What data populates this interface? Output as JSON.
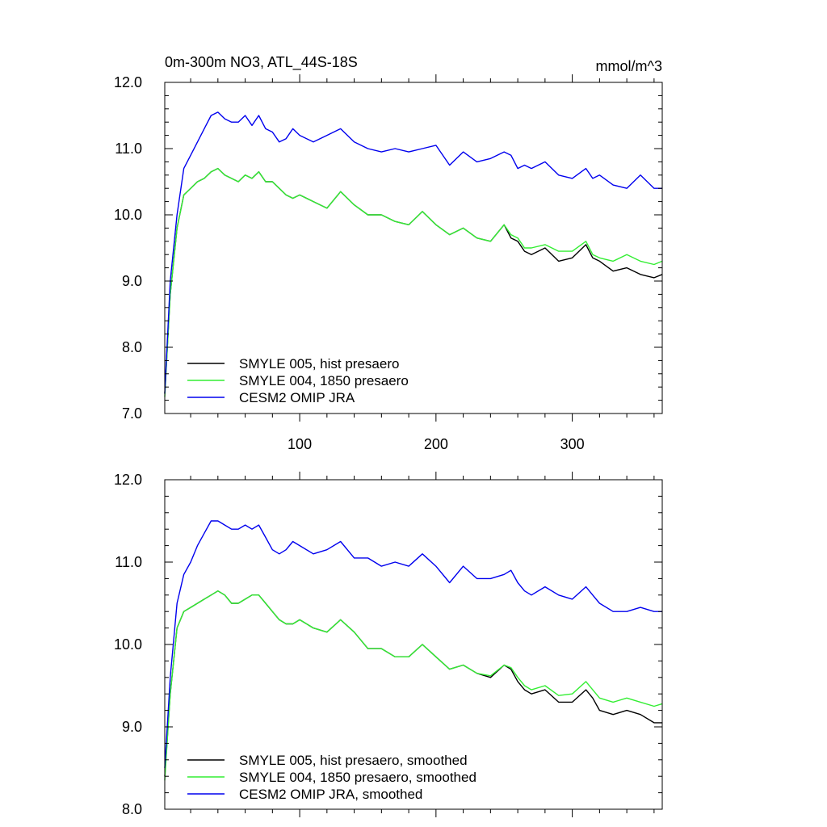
{
  "title": "0m-300m NO3, ATL_44S-18S",
  "units": "mmol/m^3",
  "chart_data": [
    {
      "type": "line",
      "name": "raw",
      "xlim": [
        1,
        366
      ],
      "ylim": [
        7.0,
        12.0
      ],
      "yticks": [
        7.0,
        8.0,
        9.0,
        10.0,
        11.0,
        12.0
      ],
      "ytick_labels": [
        "7.0",
        "8.0",
        "9.0",
        "10.0",
        "11.0",
        "12.0"
      ],
      "xticks": [
        100,
        200,
        300
      ],
      "xtick_labels": [
        "100",
        "200",
        "300"
      ],
      "legend_position": "bottom-left",
      "series": [
        {
          "name": "SMYLE 005, hist presaero",
          "color": "#000000",
          "x": [
            1,
            5,
            10,
            15,
            20,
            25,
            30,
            35,
            40,
            45,
            50,
            55,
            60,
            65,
            70,
            75,
            80,
            85,
            90,
            95,
            100,
            110,
            120,
            130,
            140,
            150,
            160,
            170,
            180,
            190,
            200,
            210,
            220,
            230,
            240,
            250,
            255,
            260,
            265,
            270,
            280,
            290,
            300,
            310,
            315,
            320,
            330,
            340,
            350,
            360,
            366
          ],
          "values": [
            7.3,
            8.8,
            9.8,
            10.3,
            10.4,
            10.5,
            10.55,
            10.65,
            10.7,
            10.6,
            10.55,
            10.5,
            10.6,
            10.55,
            10.65,
            10.5,
            10.5,
            10.4,
            10.3,
            10.25,
            10.3,
            10.2,
            10.1,
            10.35,
            10.15,
            10.0,
            10.0,
            9.9,
            9.85,
            10.05,
            9.85,
            9.7,
            9.8,
            9.65,
            9.6,
            9.85,
            9.65,
            9.6,
            9.45,
            9.4,
            9.5,
            9.3,
            9.35,
            9.55,
            9.35,
            9.3,
            9.15,
            9.2,
            9.1,
            9.05,
            9.1
          ]
        },
        {
          "name": "SMYLE 004, 1850 presaero",
          "color": "#33ee33",
          "x": [
            1,
            5,
            10,
            15,
            20,
            25,
            30,
            35,
            40,
            45,
            50,
            55,
            60,
            65,
            70,
            75,
            80,
            85,
            90,
            95,
            100,
            110,
            120,
            130,
            140,
            150,
            160,
            170,
            180,
            190,
            200,
            210,
            220,
            230,
            240,
            250,
            255,
            260,
            265,
            270,
            280,
            290,
            300,
            310,
            315,
            320,
            330,
            340,
            350,
            360,
            366
          ],
          "values": [
            7.25,
            8.8,
            9.8,
            10.3,
            10.4,
            10.5,
            10.55,
            10.65,
            10.7,
            10.6,
            10.55,
            10.5,
            10.6,
            10.55,
            10.65,
            10.5,
            10.5,
            10.4,
            10.3,
            10.25,
            10.3,
            10.2,
            10.1,
            10.35,
            10.15,
            10.0,
            10.0,
            9.9,
            9.85,
            10.05,
            9.85,
            9.7,
            9.8,
            9.65,
            9.6,
            9.85,
            9.7,
            9.65,
            9.5,
            9.5,
            9.55,
            9.45,
            9.45,
            9.6,
            9.4,
            9.35,
            9.3,
            9.4,
            9.3,
            9.25,
            9.3
          ]
        },
        {
          "name": "CESM2 OMIP JRA",
          "color": "#0000ee",
          "x": [
            1,
            5,
            10,
            15,
            20,
            25,
            30,
            35,
            40,
            45,
            50,
            55,
            60,
            65,
            70,
            75,
            80,
            85,
            90,
            95,
            100,
            110,
            120,
            130,
            140,
            150,
            160,
            170,
            180,
            190,
            200,
            210,
            220,
            230,
            240,
            250,
            255,
            260,
            265,
            270,
            280,
            290,
            300,
            310,
            315,
            320,
            330,
            340,
            350,
            360,
            366
          ],
          "values": [
            7.3,
            9.0,
            10.0,
            10.7,
            10.9,
            11.1,
            11.3,
            11.5,
            11.55,
            11.45,
            11.4,
            11.4,
            11.5,
            11.35,
            11.5,
            11.3,
            11.25,
            11.1,
            11.15,
            11.3,
            11.2,
            11.1,
            11.2,
            11.3,
            11.1,
            11.0,
            10.95,
            11.0,
            10.95,
            11.0,
            11.05,
            10.75,
            10.95,
            10.8,
            10.85,
            10.95,
            10.9,
            10.7,
            10.75,
            10.7,
            10.8,
            10.6,
            10.55,
            10.7,
            10.55,
            10.6,
            10.45,
            10.4,
            10.6,
            10.4,
            10.4
          ]
        }
      ]
    },
    {
      "type": "line",
      "name": "smoothed",
      "xlim": [
        1,
        366
      ],
      "ylim": [
        8.0,
        12.0
      ],
      "yticks": [
        8.0,
        9.0,
        10.0,
        11.0,
        12.0
      ],
      "ytick_labels": [
        "8.0",
        "9.0",
        "10.0",
        "11.0",
        "12.0"
      ],
      "xticks": [
        100,
        200,
        300
      ],
      "xtick_labels": [],
      "legend_position": "bottom-left",
      "series": [
        {
          "name": "SMYLE 005, hist presaero, smoothed",
          "color": "#000000",
          "x": [
            1,
            5,
            10,
            15,
            20,
            25,
            30,
            35,
            40,
            45,
            50,
            55,
            60,
            65,
            70,
            75,
            80,
            85,
            90,
            95,
            100,
            110,
            120,
            130,
            140,
            150,
            160,
            170,
            180,
            190,
            200,
            210,
            220,
            230,
            240,
            250,
            255,
            260,
            265,
            270,
            280,
            290,
            300,
            310,
            315,
            320,
            330,
            340,
            350,
            360,
            366
          ],
          "values": [
            8.4,
            9.4,
            10.2,
            10.4,
            10.45,
            10.5,
            10.55,
            10.6,
            10.65,
            10.6,
            10.5,
            10.5,
            10.55,
            10.6,
            10.6,
            10.5,
            10.4,
            10.3,
            10.25,
            10.25,
            10.3,
            10.2,
            10.15,
            10.3,
            10.15,
            9.95,
            9.95,
            9.85,
            9.85,
            10.0,
            9.85,
            9.7,
            9.75,
            9.65,
            9.6,
            9.75,
            9.7,
            9.55,
            9.45,
            9.4,
            9.45,
            9.3,
            9.3,
            9.45,
            9.35,
            9.2,
            9.15,
            9.2,
            9.15,
            9.05,
            9.05
          ]
        },
        {
          "name": "SMYLE 004, 1850 presaero, smoothed",
          "color": "#33ee33",
          "x": [
            1,
            5,
            10,
            15,
            20,
            25,
            30,
            35,
            40,
            45,
            50,
            55,
            60,
            65,
            70,
            75,
            80,
            85,
            90,
            95,
            100,
            110,
            120,
            130,
            140,
            150,
            160,
            170,
            180,
            190,
            200,
            210,
            220,
            230,
            240,
            250,
            255,
            260,
            265,
            270,
            280,
            290,
            300,
            310,
            315,
            320,
            330,
            340,
            350,
            360,
            366
          ],
          "values": [
            8.35,
            9.4,
            10.2,
            10.4,
            10.45,
            10.5,
            10.55,
            10.6,
            10.65,
            10.6,
            10.5,
            10.5,
            10.55,
            10.6,
            10.6,
            10.5,
            10.4,
            10.3,
            10.25,
            10.25,
            10.3,
            10.2,
            10.15,
            10.3,
            10.15,
            9.95,
            9.95,
            9.85,
            9.85,
            10.0,
            9.85,
            9.7,
            9.75,
            9.65,
            9.62,
            9.75,
            9.72,
            9.6,
            9.5,
            9.45,
            9.5,
            9.38,
            9.4,
            9.55,
            9.45,
            9.35,
            9.3,
            9.35,
            9.3,
            9.25,
            9.28
          ]
        },
        {
          "name": "CESM2 OMIP JRA, smoothed",
          "color": "#0000ee",
          "x": [
            1,
            5,
            10,
            15,
            20,
            25,
            30,
            35,
            40,
            45,
            50,
            55,
            60,
            65,
            70,
            75,
            80,
            85,
            90,
            95,
            100,
            110,
            120,
            130,
            140,
            150,
            160,
            170,
            180,
            190,
            200,
            210,
            220,
            230,
            240,
            250,
            255,
            260,
            265,
            270,
            280,
            290,
            300,
            310,
            315,
            320,
            330,
            340,
            350,
            360,
            366
          ],
          "values": [
            8.5,
            9.6,
            10.5,
            10.85,
            11.0,
            11.2,
            11.35,
            11.5,
            11.5,
            11.45,
            11.4,
            11.4,
            11.45,
            11.4,
            11.45,
            11.3,
            11.15,
            11.1,
            11.15,
            11.25,
            11.2,
            11.1,
            11.15,
            11.25,
            11.05,
            11.05,
            10.95,
            11.0,
            10.95,
            11.1,
            10.95,
            10.75,
            10.95,
            10.8,
            10.8,
            10.85,
            10.9,
            10.75,
            10.65,
            10.6,
            10.7,
            10.6,
            10.55,
            10.7,
            10.6,
            10.5,
            10.4,
            10.4,
            10.45,
            10.4,
            10.4
          ]
        }
      ]
    }
  ]
}
